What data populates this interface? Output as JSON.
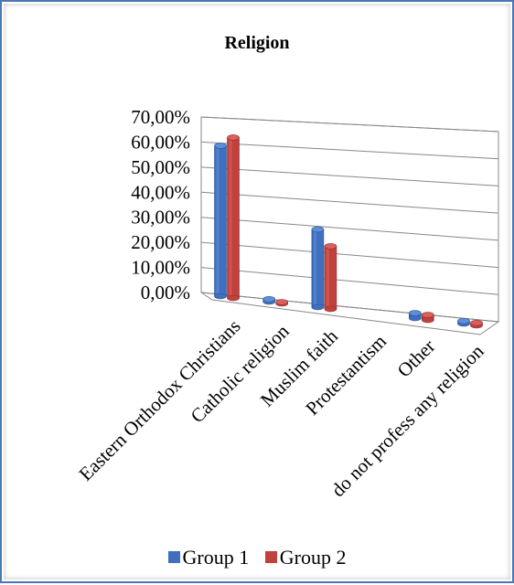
{
  "chart_data": {
    "type": "bar",
    "title": "Religion",
    "categories": [
      "Eastern Orthodox Christians",
      "Catholic religion",
      "Muslim faith",
      "Protestantism",
      "Other",
      "do not profess any religion"
    ],
    "series": [
      {
        "name": "Group 1",
        "color": "#3f6fbf",
        "values": [
          0.6,
          0.01,
          0.31,
          0.0,
          0.02,
          0.01
        ]
      },
      {
        "name": "Group 2",
        "color": "#c0413e",
        "values": [
          0.64,
          0.005,
          0.25,
          0.0,
          0.02,
          0.01
        ]
      }
    ],
    "y_ticks": [
      "0,00%",
      "10,00%",
      "20,00%",
      "30,00%",
      "40,00%",
      "50,00%",
      "60,00%",
      "70,00%"
    ],
    "ylim": [
      0,
      0.7
    ],
    "grid": true,
    "legend_position": "bottom",
    "style": "3d-cylinder"
  }
}
